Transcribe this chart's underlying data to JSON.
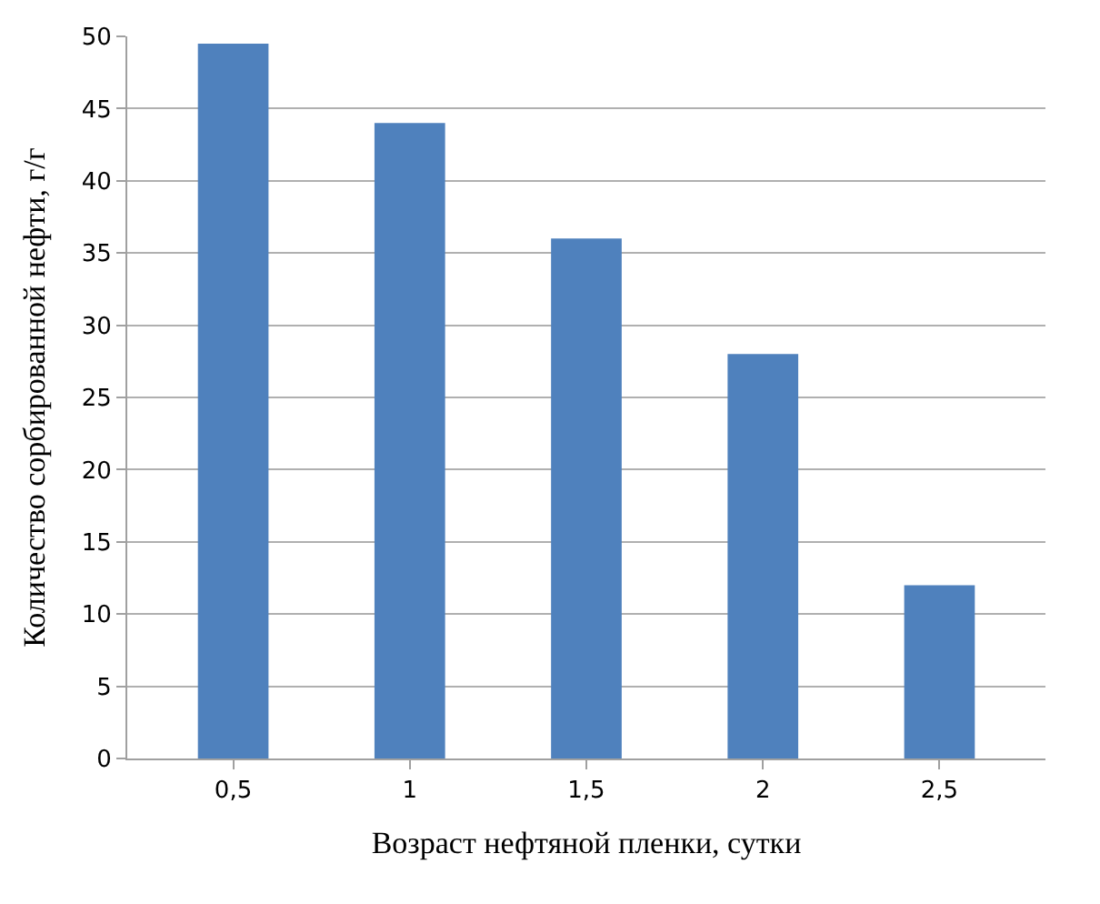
{
  "chart_data": {
    "type": "bar",
    "xlabel": "Возраст нефтяной пленки, сутки",
    "ylabel": "Количество сорбированной нефти, г/г",
    "categories": [
      "0,5",
      "1",
      "1,5",
      "2",
      "2,5"
    ],
    "values": [
      49.5,
      44,
      36,
      28,
      12
    ],
    "color": "#4f81bd",
    "ylim": [
      0,
      50
    ],
    "yticks": [
      0,
      5,
      10,
      15,
      20,
      25,
      30,
      35,
      40,
      45,
      50
    ],
    "grid": "y"
  }
}
